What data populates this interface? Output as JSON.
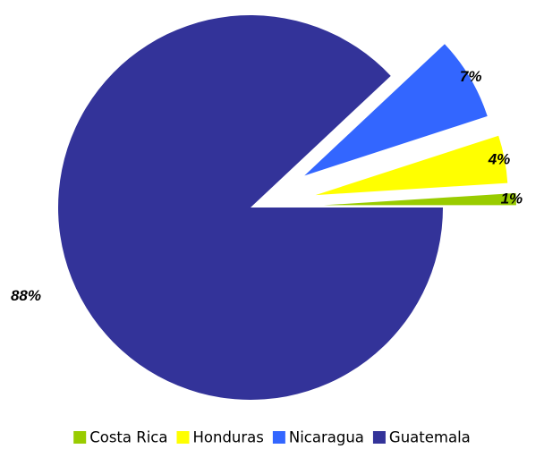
{
  "chart_data": {
    "type": "pie",
    "title": "",
    "categories": [
      "Costa Rica",
      "Honduras",
      "Nicaragua",
      "Guatemala"
    ],
    "values": [
      1,
      4,
      7,
      88
    ],
    "data_labels": [
      "1%",
      "4%",
      "7%",
      "88%"
    ],
    "colors": [
      "#99CC00",
      "#FFFF00",
      "#3366FF",
      "#333399"
    ],
    "exploded": true,
    "legend_position": "bottom",
    "data_label_style": "bold-italic"
  }
}
